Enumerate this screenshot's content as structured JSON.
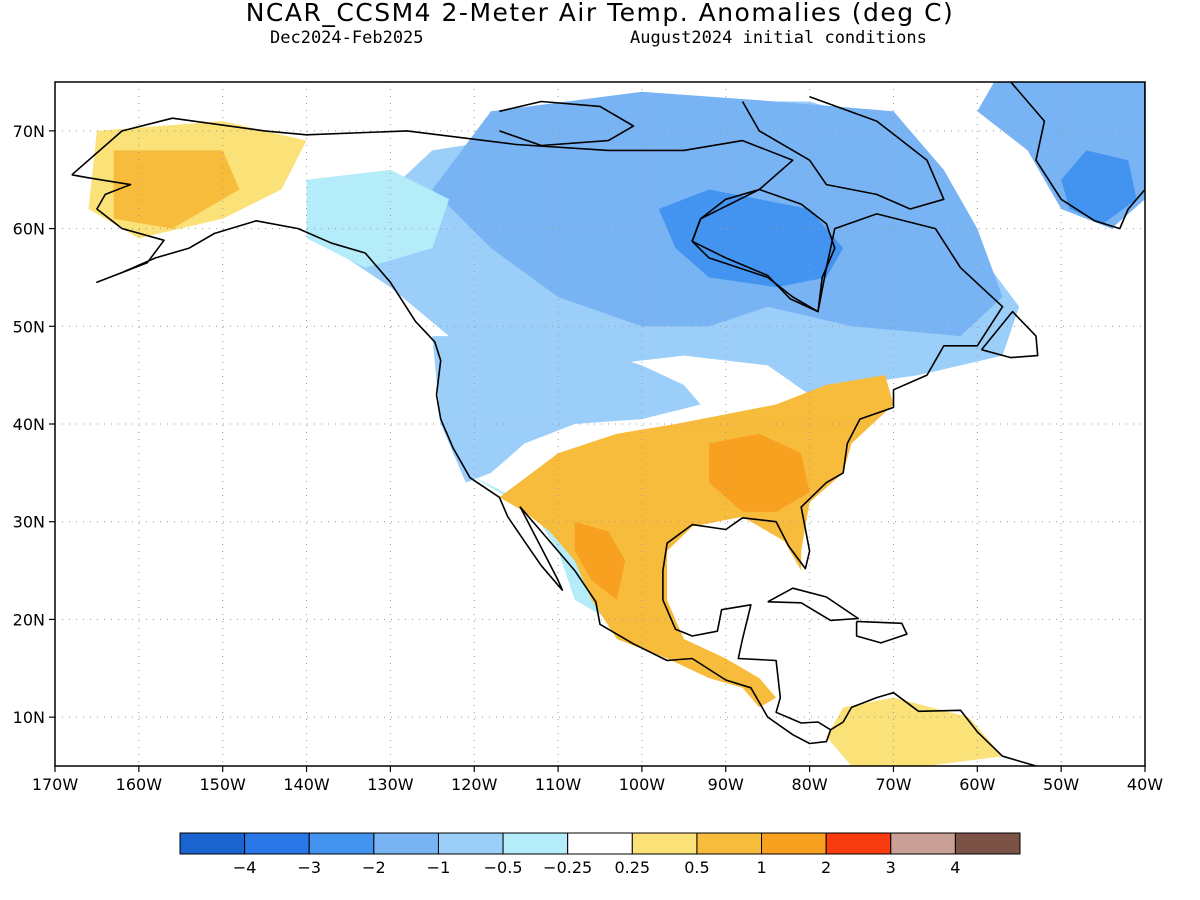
{
  "title": "NCAR_CCSM4 2-Meter Air Temp. Anomalies (deg C)",
  "subtitle_left": "Dec2024-Feb2025",
  "subtitle_right": "August2024 initial conditions",
  "lon_ticks": [
    {
      "lon": -170,
      "label": "170W"
    },
    {
      "lon": -160,
      "label": "160W"
    },
    {
      "lon": -150,
      "label": "150W"
    },
    {
      "lon": -140,
      "label": "140W"
    },
    {
      "lon": -130,
      "label": "130W"
    },
    {
      "lon": -120,
      "label": "120W"
    },
    {
      "lon": -110,
      "label": "110W"
    },
    {
      "lon": -100,
      "label": "100W"
    },
    {
      "lon": -90,
      "label": "90W"
    },
    {
      "lon": -80,
      "label": "80W"
    },
    {
      "lon": -70,
      "label": "70W"
    },
    {
      "lon": -60,
      "label": "60W"
    },
    {
      "lon": -50,
      "label": "50W"
    },
    {
      "lon": -40,
      "label": "40W"
    }
  ],
  "lat_ticks": [
    {
      "lat": 10,
      "label": "10N"
    },
    {
      "lat": 20,
      "label": "20N"
    },
    {
      "lat": 30,
      "label": "30N"
    },
    {
      "lat": 40,
      "label": "40N"
    },
    {
      "lat": 50,
      "label": "50N"
    },
    {
      "lat": 60,
      "label": "60N"
    },
    {
      "lat": 70,
      "label": "70N"
    }
  ],
  "map_extent": {
    "lon_min": -170,
    "lon_max": -40,
    "lat_min": 5,
    "lat_max": 75
  },
  "colorbar": {
    "colors": [
      "#1a64d0",
      "#2a78e8",
      "#4294f0",
      "#78b4f4",
      "#9ccefa",
      "#b4ecfa",
      "#ffffff",
      "#fbe278",
      "#f8bc3c",
      "#f8a020",
      "#f83c10",
      "#c8a096",
      "#7a5246"
    ],
    "labels": [
      "−4",
      "−3",
      "−2",
      "−1",
      "−0.5",
      "−0.25",
      "0.25",
      "0.5",
      "1",
      "2",
      "3",
      "4"
    ]
  },
  "regions": [
    {
      "name": "canada-cool",
      "color": "#9ccefa",
      "pts": [
        [
          -137,
          60
        ],
        [
          -130,
          64
        ],
        [
          -125,
          68
        ],
        [
          -110,
          70
        ],
        [
          -95,
          73
        ],
        [
          -80,
          73
        ],
        [
          -68,
          70
        ],
        [
          -62,
          60
        ],
        [
          -55,
          52
        ],
        [
          -57,
          47
        ],
        [
          -67,
          45
        ],
        [
          -75,
          44
        ],
        [
          -80,
          43
        ],
        [
          -85,
          46
        ],
        [
          -95,
          47
        ],
        [
          -105,
          46
        ],
        [
          -115,
          45
        ],
        [
          -123,
          49
        ],
        [
          -130,
          54
        ],
        [
          -137,
          58
        ]
      ]
    },
    {
      "name": "arctic-cool",
      "color": "#78b4f4",
      "pts": [
        [
          -118,
          72
        ],
        [
          -100,
          74
        ],
        [
          -84,
          73
        ],
        [
          -70,
          72
        ],
        [
          -64,
          66
        ],
        [
          -60,
          60
        ],
        [
          -57,
          53
        ],
        [
          -62,
          49
        ],
        [
          -75,
          50
        ],
        [
          -85,
          52
        ],
        [
          -92,
          50
        ],
        [
          -100,
          50
        ],
        [
          -110,
          53
        ],
        [
          -118,
          58
        ],
        [
          -125,
          64
        ]
      ]
    },
    {
      "name": "hudson-cool",
      "color": "#4294f0",
      "pts": [
        [
          -98,
          62
        ],
        [
          -92,
          64
        ],
        [
          -86,
          63
        ],
        [
          -80,
          62
        ],
        [
          -76,
          58
        ],
        [
          -78,
          55
        ],
        [
          -84,
          54
        ],
        [
          -92,
          55
        ],
        [
          -96,
          58
        ]
      ]
    },
    {
      "name": "greenland-cool",
      "color": "#78b4f4",
      "pts": [
        [
          -58,
          75
        ],
        [
          -40,
          75
        ],
        [
          -40,
          63
        ],
        [
          -44,
          60
        ],
        [
          -50,
          62
        ],
        [
          -54,
          68
        ],
        [
          -60,
          72
        ]
      ]
    },
    {
      "name": "greenland-cold",
      "color": "#4294f0",
      "pts": [
        [
          -47,
          68
        ],
        [
          -42,
          67
        ],
        [
          -41,
          63
        ],
        [
          -45,
          60.5
        ],
        [
          -49,
          62
        ],
        [
          -50,
          65
        ]
      ]
    },
    {
      "name": "west-us-cool",
      "color": "#9ccefa",
      "pts": [
        [
          -125,
          49
        ],
        [
          -111,
          49
        ],
        [
          -100,
          46
        ],
        [
          -95,
          44
        ],
        [
          -93,
          42
        ],
        [
          -100,
          40.5
        ],
        [
          -108,
          40
        ],
        [
          -114,
          38
        ],
        [
          -118,
          35
        ],
        [
          -121,
          34
        ],
        [
          -124,
          40
        ]
      ]
    },
    {
      "name": "coast-pale",
      "color": "#b4ecfa",
      "pts": [
        [
          -121,
          35
        ],
        [
          -117,
          33
        ],
        [
          -113,
          31
        ],
        [
          -110,
          27
        ],
        [
          -108,
          22
        ],
        [
          -104,
          20
        ],
        [
          -103,
          22
        ],
        [
          -107,
          27
        ],
        [
          -110,
          30
        ],
        [
          -114,
          32
        ]
      ]
    },
    {
      "name": "southeast-warm",
      "color": "#f8bc3c",
      "pts": [
        [
          -117,
          32.5
        ],
        [
          -110,
          37
        ],
        [
          -103,
          39
        ],
        [
          -96,
          40
        ],
        [
          -90,
          41
        ],
        [
          -84,
          42
        ],
        [
          -78,
          44
        ],
        [
          -71,
          45
        ],
        [
          -70,
          42
        ],
        [
          -75,
          38
        ],
        [
          -76,
          35
        ],
        [
          -80,
          32
        ],
        [
          -81,
          27
        ],
        [
          -81,
          25
        ],
        [
          -83,
          28
        ],
        [
          -88,
          30.5
        ],
        [
          -94,
          29.5
        ],
        [
          -97,
          27
        ],
        [
          -97,
          22
        ],
        [
          -95,
          18
        ],
        [
          -90,
          16
        ],
        [
          -86,
          14
        ],
        [
          -84,
          12
        ],
        [
          -86,
          11
        ],
        [
          -88,
          13
        ],
        [
          -92,
          14
        ],
        [
          -97,
          16
        ],
        [
          -103,
          18
        ],
        [
          -106,
          22
        ],
        [
          -108,
          26
        ],
        [
          -111,
          29
        ],
        [
          -114,
          31
        ]
      ]
    },
    {
      "name": "interior-warm",
      "color": "#f8a020",
      "pts": [
        [
          -92,
          38
        ],
        [
          -86,
          39
        ],
        [
          -81,
          37
        ],
        [
          -80,
          33
        ],
        [
          -84,
          31
        ],
        [
          -88,
          31
        ],
        [
          -92,
          34
        ]
      ]
    },
    {
      "name": "mexico-warm",
      "color": "#f8a020",
      "pts": [
        [
          -108,
          30
        ],
        [
          -104,
          29
        ],
        [
          -102,
          26
        ],
        [
          -103,
          22
        ],
        [
          -106,
          24
        ],
        [
          -108,
          27
        ]
      ]
    },
    {
      "name": "alaska-warm",
      "color": "#fbe278",
      "pts": [
        [
          -165,
          70
        ],
        [
          -150,
          71
        ],
        [
          -140,
          69
        ],
        [
          -143,
          64
        ],
        [
          -150,
          61
        ],
        [
          -160,
          59
        ],
        [
          -166,
          62
        ]
      ]
    },
    {
      "name": "alaska-orange",
      "color": "#f8bc3c",
      "pts": [
        [
          -163,
          68
        ],
        [
          -150,
          68
        ],
        [
          -148,
          64
        ],
        [
          -156,
          60
        ],
        [
          -163,
          61
        ]
      ]
    },
    {
      "name": "yukon-pale",
      "color": "#b4ecfa",
      "pts": [
        [
          -140,
          65
        ],
        [
          -130,
          66
        ],
        [
          -123,
          63
        ],
        [
          -125,
          58
        ],
        [
          -133,
          56
        ],
        [
          -140,
          59
        ]
      ]
    },
    {
      "name": "samerica-warm",
      "color": "#fbe278",
      "pts": [
        [
          -76,
          11
        ],
        [
          -70,
          12
        ],
        [
          -61,
          10
        ],
        [
          -57,
          6
        ],
        [
          -66,
          5
        ],
        [
          -75,
          5
        ],
        [
          -78,
          8
        ]
      ]
    }
  ],
  "coasts": [
    {
      "name": "north-america-outline",
      "pts": [
        [
          -168,
          65.5
        ],
        [
          -162,
          70
        ],
        [
          -156,
          71.3
        ],
        [
          -145,
          70
        ],
        [
          -140,
          69.6
        ],
        [
          -128,
          70
        ],
        [
          -115,
          68.6
        ],
        [
          -104,
          68
        ],
        [
          -95,
          68
        ],
        [
          -88,
          69
        ],
        [
          -82,
          67
        ],
        [
          -86,
          64
        ],
        [
          -93,
          61
        ],
        [
          -94,
          58.7
        ],
        [
          -92,
          57
        ],
        [
          -85,
          55
        ],
        [
          -82,
          53
        ],
        [
          -79,
          51.5
        ],
        [
          -78,
          56
        ],
        [
          -77,
          60
        ],
        [
          -72,
          61.5
        ],
        [
          -65,
          60
        ],
        [
          -62,
          56
        ],
        [
          -57,
          52
        ],
        [
          -60,
          48
        ],
        [
          -64,
          48
        ],
        [
          -66,
          45
        ],
        [
          -70,
          43.5
        ],
        [
          -70,
          41.7
        ],
        [
          -74,
          40.5
        ],
        [
          -75.5,
          38
        ],
        [
          -76,
          35
        ],
        [
          -78,
          34
        ],
        [
          -81,
          31.5
        ],
        [
          -80,
          27
        ],
        [
          -80.5,
          25.2
        ],
        [
          -82.5,
          27.5
        ],
        [
          -84,
          30
        ],
        [
          -88,
          30.4
        ],
        [
          -90,
          29.2
        ],
        [
          -94,
          29.7
        ],
        [
          -97,
          27.8
        ],
        [
          -97.5,
          25
        ],
        [
          -97.5,
          22
        ],
        [
          -96,
          19
        ],
        [
          -94,
          18.3
        ],
        [
          -91,
          18.8
        ],
        [
          -90.5,
          21
        ],
        [
          -87,
          21.5
        ],
        [
          -88,
          18
        ],
        [
          -88.5,
          16
        ],
        [
          -84,
          15.8
        ],
        [
          -83.5,
          12
        ],
        [
          -84,
          10.5
        ],
        [
          -81,
          9.4
        ],
        [
          -79,
          9.5
        ],
        [
          -77.5,
          8.7
        ],
        [
          -78,
          7.5
        ],
        [
          -80,
          7.3
        ],
        [
          -82,
          8.2
        ],
        [
          -85,
          10
        ],
        [
          -87,
          13
        ],
        [
          -90,
          13.8
        ],
        [
          -94,
          16
        ],
        [
          -97,
          15.8
        ],
        [
          -101,
          17.5
        ],
        [
          -105,
          19.5
        ],
        [
          -105.5,
          21.8
        ],
        [
          -108,
          25
        ],
        [
          -112,
          29
        ],
        [
          -114.5,
          31.5
        ],
        [
          -113,
          29
        ],
        [
          -110,
          24
        ],
        [
          -109.5,
          23
        ],
        [
          -112,
          25.5
        ],
        [
          -114,
          28
        ],
        [
          -116,
          30.5
        ],
        [
          -117,
          32.5
        ],
        [
          -120.5,
          34.5
        ],
        [
          -122.5,
          37.5
        ],
        [
          -124,
          40.5
        ],
        [
          -124.5,
          43
        ],
        [
          -124,
          46.5
        ],
        [
          -124.7,
          48.4
        ],
        [
          -127,
          50.5
        ],
        [
          -130,
          54.5
        ],
        [
          -133,
          57.5
        ],
        [
          -137,
          58.5
        ],
        [
          -141,
          60
        ],
        [
          -146,
          60.8
        ],
        [
          -151,
          59.5
        ],
        [
          -154,
          58
        ],
        [
          -158,
          57
        ],
        [
          -162,
          55.5
        ],
        [
          -165,
          54.5
        ],
        [
          -159,
          56.5
        ],
        [
          -157,
          58.8
        ],
        [
          -162,
          60
        ],
        [
          -165,
          62
        ],
        [
          -164,
          63.5
        ],
        [
          -161,
          64.5
        ],
        [
          -166,
          65.2
        ],
        [
          -168,
          65.5
        ]
      ]
    },
    {
      "name": "hudson-bay",
      "pts": [
        [
          -94,
          58.7
        ],
        [
          -90,
          57
        ],
        [
          -85,
          55.2
        ],
        [
          -82.3,
          52.8
        ],
        [
          -79,
          51.5
        ],
        [
          -78.5,
          55
        ],
        [
          -77,
          58
        ],
        [
          -78,
          60.5
        ],
        [
          -81,
          62.5
        ],
        [
          -86,
          64
        ],
        [
          -90,
          63
        ],
        [
          -93,
          61
        ],
        [
          -94,
          58.7
        ]
      ]
    },
    {
      "name": "greenland",
      "pts": [
        [
          -56,
          75
        ],
        [
          -52,
          71
        ],
        [
          -53,
          67
        ],
        [
          -50,
          63
        ],
        [
          -46,
          60.8
        ],
        [
          -43,
          60
        ],
        [
          -42,
          62
        ],
        [
          -40,
          64
        ],
        [
          -40,
          75
        ]
      ]
    },
    {
      "name": "baffin-island",
      "pts": [
        [
          -80,
          73.5
        ],
        [
          -72,
          71
        ],
        [
          -66,
          67
        ],
        [
          -64,
          63
        ],
        [
          -68,
          62
        ],
        [
          -72,
          63.5
        ],
        [
          -78,
          64.5
        ],
        [
          -80,
          67
        ],
        [
          -86,
          70
        ],
        [
          -88,
          73
        ]
      ]
    },
    {
      "name": "victoria-island",
      "pts": [
        [
          -117,
          70
        ],
        [
          -112,
          68.5
        ],
        [
          -104,
          69
        ],
        [
          -101,
          70.5
        ],
        [
          -105,
          72.5
        ],
        [
          -112,
          73
        ],
        [
          -117,
          72
        ]
      ]
    },
    {
      "name": "newfoundland",
      "pts": [
        [
          -59.5,
          47.6
        ],
        [
          -55.8,
          51.5
        ],
        [
          -53,
          49
        ],
        [
          -52.8,
          47
        ],
        [
          -56,
          46.8
        ],
        [
          -59.5,
          47.6
        ]
      ]
    },
    {
      "name": "cuba",
      "pts": [
        [
          -85,
          21.8
        ],
        [
          -82,
          23.2
        ],
        [
          -78,
          22.3
        ],
        [
          -74.2,
          20.1
        ],
        [
          -77.5,
          19.9
        ],
        [
          -81,
          21.7
        ],
        [
          -85,
          21.8
        ]
      ]
    },
    {
      "name": "hispaniola",
      "pts": [
        [
          -74.4,
          19.8
        ],
        [
          -69,
          19.6
        ],
        [
          -68.4,
          18.5
        ],
        [
          -71.5,
          17.6
        ],
        [
          -74.4,
          18.3
        ],
        [
          -74.4,
          19.8
        ]
      ]
    },
    {
      "name": "south-america",
      "pts": [
        [
          -77.5,
          8.7
        ],
        [
          -76,
          9.5
        ],
        [
          -75,
          11
        ],
        [
          -72,
          12
        ],
        [
          -70,
          12.5
        ],
        [
          -67,
          10.6
        ],
        [
          -62,
          10.7
        ],
        [
          -60,
          8.5
        ],
        [
          -57,
          6
        ],
        [
          -53,
          5
        ]
      ]
    }
  ]
}
